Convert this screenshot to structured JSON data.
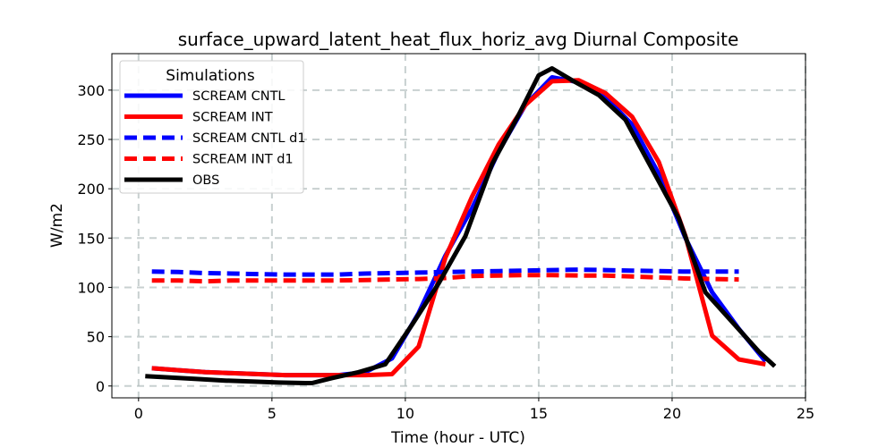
{
  "chart_data": {
    "type": "line",
    "title": "surface_upward_latent_heat_flux_horiz_avg Diurnal Composite",
    "xlabel": "Time (hour - UTC)",
    "ylabel": "W/m2",
    "xlim": [
      -1,
      25
    ],
    "ylim": [
      -12,
      337
    ],
    "xticks": [
      0,
      5,
      10,
      15,
      20,
      25
    ],
    "yticks": [
      0,
      50,
      100,
      150,
      200,
      250,
      300
    ],
    "grid": true,
    "legend": {
      "title": "Simulations",
      "position": "top-left"
    },
    "series": [
      {
        "name": "SCREAM CNTL",
        "color": "#0000ff",
        "dash": "solid",
        "x": [
          0.5,
          1.5,
          2.5,
          3.5,
          4.5,
          5.5,
          6.5,
          7.5,
          8.5,
          9.5,
          10.5,
          11.5,
          12.5,
          13.5,
          14.5,
          15.5,
          16.5,
          17.5,
          18.5,
          19.5,
          20.5,
          21.5,
          22.5,
          23.5
        ],
        "values": [
          18,
          16,
          14,
          13,
          12,
          11,
          11,
          11,
          14,
          28,
          74,
          132,
          180,
          238,
          285,
          313,
          308,
          293,
          265,
          215,
          150,
          95,
          58,
          25
        ]
      },
      {
        "name": "SCREAM INT",
        "color": "#ff0000",
        "dash": "solid",
        "x": [
          0.5,
          1.5,
          2.5,
          3.5,
          4.5,
          5.5,
          6.5,
          7.5,
          8.5,
          9.5,
          10.5,
          11.5,
          12.5,
          13.5,
          14.5,
          15.5,
          16.5,
          17.5,
          18.5,
          19.5,
          20.5,
          21.5,
          22.5,
          23.5
        ],
        "values": [
          18,
          16,
          14,
          13,
          12,
          11,
          11,
          11,
          11,
          12,
          40,
          130,
          192,
          245,
          285,
          309,
          310,
          297,
          273,
          227,
          152,
          51,
          27,
          22
        ]
      },
      {
        "name": "SCREAM CNTL d1",
        "color": "#0000ff",
        "dash": "dashed",
        "x": [
          0.5,
          1.5,
          2.5,
          3.5,
          4.5,
          5.5,
          6.5,
          7.5,
          8.5,
          9.5,
          10.5,
          11.5,
          12.5,
          13.5,
          14.5,
          15.5,
          16.5,
          17.5,
          18.5,
          19.5,
          20.5,
          21.5,
          22.5
        ],
        "values": [
          116,
          115.5,
          114.5,
          114,
          113.5,
          113,
          113,
          113,
          114,
          114.5,
          115,
          115.5,
          116,
          116.5,
          117,
          117.5,
          118,
          117.5,
          117,
          116.5,
          116,
          116,
          116
        ]
      },
      {
        "name": "SCREAM INT d1",
        "color": "#ff0000",
        "dash": "dashed",
        "x": [
          0.5,
          1.5,
          2.5,
          3.5,
          4.5,
          5.5,
          6.5,
          7.5,
          8.5,
          9.5,
          10.5,
          11.5,
          12.5,
          13.5,
          14.5,
          15.5,
          16.5,
          17.5,
          18.5,
          19.5,
          20.5,
          21.5,
          22.5
        ],
        "values": [
          107,
          107,
          106,
          107,
          107,
          107,
          107,
          107,
          107.5,
          108,
          108.5,
          109.5,
          111.5,
          112,
          112.5,
          112.5,
          112,
          112,
          111,
          110,
          109,
          108.5,
          108
        ]
      },
      {
        "name": "OBS",
        "color": "#000000",
        "dash": "solid",
        "x": [
          0.25,
          1.25,
          2.25,
          3.25,
          4.25,
          5.25,
          6.25,
          6.5,
          7.25,
          8.25,
          9.25,
          10.25,
          11.25,
          12.25,
          13.25,
          14.25,
          15.0,
          15.5,
          16.25,
          17.25,
          18.25,
          19.25,
          20.25,
          21.25,
          22.25,
          23.25,
          23.85
        ],
        "values": [
          10,
          8.5,
          7,
          5.5,
          4.5,
          3.5,
          3,
          3,
          8,
          14,
          22,
          62,
          104,
          152,
          225,
          275,
          315,
          322,
          310,
          295,
          270,
          220,
          170,
          95,
          65,
          35,
          20
        ]
      }
    ]
  }
}
